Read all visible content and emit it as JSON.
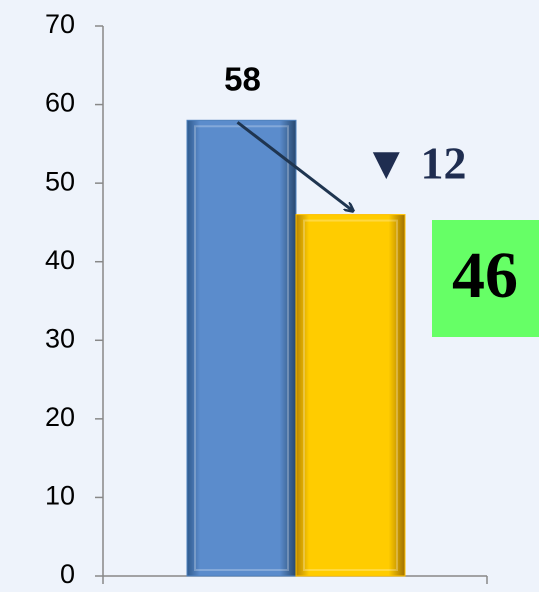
{
  "chart_data": {
    "type": "bar",
    "categories": [
      null
    ],
    "series": [
      {
        "color": "#4f81bd",
        "values": [
          58
        ]
      },
      {
        "color": "#ffc000",
        "values": [
          46
        ]
      }
    ],
    "annotations": [
      {
        "text": "▼ 12"
      }
    ],
    "ylim": [
      0,
      70
    ],
    "yticks": [
      0,
      10,
      20,
      30,
      40,
      50,
      60,
      70
    ],
    "grid": false
  }
}
